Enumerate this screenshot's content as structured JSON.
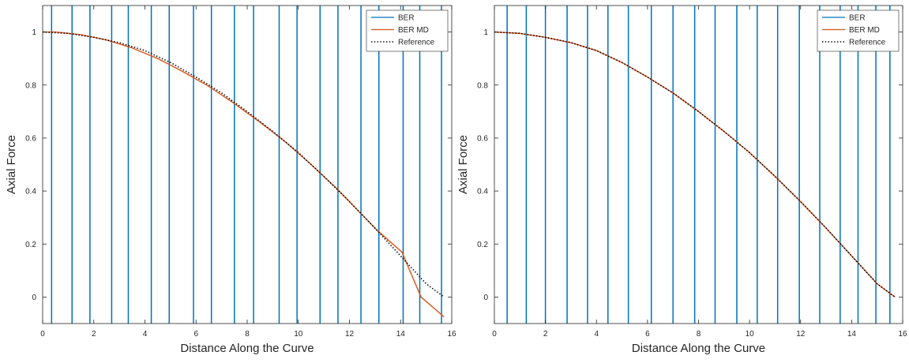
{
  "colors": {
    "ber": "#0072BD",
    "ber_md": "#D95319",
    "reference": "#000000",
    "axes": "#262626",
    "background": "#FFFFFF"
  },
  "chart_data": [
    {
      "type": "line",
      "title": "",
      "xlabel": "Distance Along the Curve",
      "ylabel": "Axial Force",
      "xlim": [
        0,
        16
      ],
      "ylim": [
        -0.1,
        1.1
      ],
      "xticks": [
        0,
        2,
        4,
        6,
        8,
        10,
        12,
        14,
        16
      ],
      "xtick_labels": [
        "0",
        "2",
        "4",
        "6",
        "8",
        "10",
        "12",
        "14",
        "16"
      ],
      "yticks": [
        0,
        0.2,
        0.4,
        0.6,
        0.8,
        1
      ],
      "ytick_labels": [
        "0",
        "0.2",
        "0.4",
        "0.6",
        "0.8",
        "1"
      ],
      "grid": false,
      "legend": {
        "position": "top-right",
        "entries": [
          "BER",
          "BER MD",
          "Reference"
        ]
      },
      "series": [
        {
          "name": "BER",
          "style": "vertical-lines",
          "x": [
            0.35,
            1.15,
            1.85,
            2.7,
            3.35,
            4.25,
            4.95,
            5.9,
            6.6,
            7.5,
            8.25,
            9.25,
            9.95,
            10.85,
            11.55,
            12.45,
            13.15,
            14.1,
            14.75,
            15.6
          ]
        },
        {
          "name": "BER MD",
          "style": "solid",
          "x": [
            0,
            0.5,
            1.5,
            2.5,
            3.5,
            4.5,
            5.5,
            6.5,
            7.5,
            8.5,
            9.5,
            10.5,
            11.5,
            12.4,
            13.1,
            14.05,
            14.8,
            15.7
          ],
          "y": [
            1.0,
            1.0,
            0.99,
            0.97,
            0.94,
            0.9,
            0.85,
            0.795,
            0.73,
            0.66,
            0.585,
            0.5,
            0.41,
            0.32,
            0.25,
            0.17,
            0.0,
            -0.075
          ]
        },
        {
          "name": "Reference",
          "style": "dotted",
          "x": [
            0,
            1,
            2,
            3,
            4,
            5,
            6,
            7,
            8,
            9,
            10,
            11,
            12,
            13,
            14,
            15,
            15.7
          ],
          "y": [
            1.0,
            0.995,
            0.98,
            0.96,
            0.93,
            0.885,
            0.83,
            0.77,
            0.7,
            0.625,
            0.545,
            0.455,
            0.36,
            0.26,
            0.155,
            0.05,
            0.0
          ]
        }
      ]
    },
    {
      "type": "line",
      "title": "",
      "xlabel": "Distance Along the Curve",
      "ylabel": "Axial Force",
      "xlim": [
        0,
        16
      ],
      "ylim": [
        -0.1,
        1.1
      ],
      "xticks": [
        0,
        2,
        4,
        6,
        8,
        10,
        12,
        14,
        16
      ],
      "xtick_labels": [
        "0",
        "2",
        "4",
        "6",
        "8",
        "10",
        "12",
        "14",
        "16"
      ],
      "yticks": [
        0,
        0.2,
        0.4,
        0.6,
        0.8,
        1
      ],
      "ytick_labels": [
        "0",
        "0.2",
        "0.4",
        "0.6",
        "0.8",
        "1"
      ],
      "grid": false,
      "legend": {
        "position": "top-right",
        "entries": [
          "BER",
          "BER MD",
          "Reference"
        ]
      },
      "series": [
        {
          "name": "BER",
          "style": "vertical-lines",
          "x": [
            0.5,
            1.25,
            2.0,
            2.85,
            3.65,
            4.45,
            5.25,
            6.15,
            7.0,
            7.85,
            8.65,
            9.5,
            10.3,
            11.1,
            11.95,
            12.75,
            13.55,
            14.25,
            14.95,
            15.5
          ]
        },
        {
          "name": "BER MD",
          "style": "solid",
          "x": [
            0,
            1,
            2,
            3,
            4,
            5,
            6,
            7,
            8,
            9,
            10,
            11,
            12,
            13,
            14,
            15,
            15.7
          ],
          "y": [
            1.0,
            0.995,
            0.98,
            0.96,
            0.93,
            0.885,
            0.83,
            0.77,
            0.7,
            0.625,
            0.545,
            0.455,
            0.36,
            0.26,
            0.155,
            0.05,
            0.0
          ]
        },
        {
          "name": "Reference",
          "style": "dotted",
          "x": [
            0,
            1,
            2,
            3,
            4,
            5,
            6,
            7,
            8,
            9,
            10,
            11,
            12,
            13,
            14,
            15,
            15.7
          ],
          "y": [
            1.0,
            0.995,
            0.98,
            0.96,
            0.93,
            0.885,
            0.83,
            0.77,
            0.7,
            0.625,
            0.545,
            0.455,
            0.36,
            0.26,
            0.155,
            0.05,
            0.0
          ]
        }
      ]
    }
  ]
}
